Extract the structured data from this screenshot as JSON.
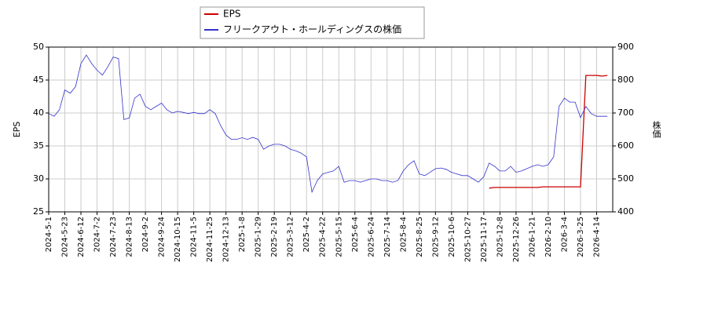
{
  "chart_data": {
    "type": "line",
    "y_label": "EPS",
    "y2_label": "株価",
    "categories": [
      "2024-5-1",
      null,
      null,
      "2024-5-23",
      null,
      null,
      "2024-6-12",
      null,
      null,
      "2024-7-2",
      null,
      null,
      "2024-7-23",
      null,
      null,
      "2024-8-13",
      null,
      null,
      "2024-9-2",
      null,
      null,
      "2024-9-24",
      null,
      null,
      "2024-10-15",
      null,
      null,
      "2024-11-5",
      null,
      null,
      "2024-11-25",
      null,
      null,
      "2024-12-13",
      null,
      null,
      "2025-1-8",
      null,
      null,
      "2025-1-29",
      null,
      null,
      "2025-2-19",
      null,
      null,
      "2025-3-12",
      null,
      null,
      "2025-4-2",
      null,
      null,
      "2025-4-22",
      null,
      null,
      "2025-5-15",
      null,
      null,
      "2025-6-4",
      null,
      null,
      "2025-6-24",
      null,
      null,
      "2025-7-14",
      null,
      null,
      "2025-8-4",
      null,
      null,
      "2025-8-25",
      null,
      null,
      "2025-9-12",
      null,
      null,
      "2025-10-6",
      null,
      null,
      "2025-10-27",
      null,
      null,
      "2025-11-17",
      null,
      null,
      "2025-12-8",
      null,
      null,
      "2025-12-26",
      null,
      null,
      "2026-1-21",
      null,
      null,
      "2026-2-10",
      null,
      null,
      "2026-3-4",
      null,
      null,
      "2026-3-25",
      null,
      null,
      "2026-4-14",
      null,
      null
    ],
    "series": [
      {
        "name": "EPS",
        "color": "#cc0000",
        "axis": "y",
        "values": [
          null,
          null,
          null,
          null,
          null,
          null,
          null,
          null,
          null,
          null,
          null,
          null,
          null,
          null,
          null,
          null,
          null,
          null,
          null,
          null,
          null,
          null,
          null,
          null,
          null,
          null,
          null,
          null,
          null,
          null,
          null,
          null,
          null,
          null,
          null,
          null,
          null,
          null,
          null,
          null,
          null,
          null,
          null,
          null,
          null,
          null,
          null,
          null,
          null,
          null,
          null,
          null,
          null,
          null,
          null,
          null,
          null,
          null,
          null,
          null,
          null,
          null,
          null,
          null,
          null,
          null,
          null,
          null,
          null,
          null,
          null,
          null,
          null,
          null,
          null,
          null,
          null,
          null,
          null,
          null,
          null,
          null,
          28.6,
          28.7,
          28.7,
          28.7,
          28.7,
          28.7,
          28.7,
          28.7,
          28.7,
          28.7,
          28.8,
          28.8,
          28.8,
          28.8,
          28.8,
          28.8,
          28.8,
          28.8,
          45.7,
          45.7,
          45.7,
          45.6,
          45.7
        ]
      },
      {
        "name": "フリークアウト・ホールディングスの株価",
        "color": "#3333cc",
        "axis": "y2",
        "values": [
          698,
          690,
          710,
          770,
          760,
          780,
          850,
          876,
          850,
          830,
          815,
          840,
          870,
          865,
          680,
          685,
          745,
          757,
          720,
          710,
          720,
          730,
          710,
          700,
          705,
          702,
          698,
          702,
          698,
          698,
          710,
          698,
          662,
          633,
          620,
          620,
          625,
          620,
          626,
          620,
          590,
          600,
          605,
          605,
          600,
          590,
          585,
          578,
          567,
          460,
          495,
          515,
          520,
          524,
          538,
          490,
          495,
          495,
          490,
          495,
          500,
          500,
          495,
          495,
          490,
          495,
          524,
          543,
          555,
          515,
          510,
          520,
          531,
          533,
          529,
          520,
          515,
          510,
          510,
          500,
          490,
          507,
          548,
          538,
          524,
          524,
          538,
          520,
          524,
          531,
          538,
          543,
          538,
          543,
          567,
          720,
          745,
          733,
          733,
          686,
          720,
          698,
          690,
          690,
          690
        ]
      }
    ],
    "ylim": [
      25,
      50
    ],
    "yticks": [
      25,
      30,
      35,
      40,
      45,
      50
    ],
    "y2lim": [
      400,
      900
    ],
    "y2ticks": [
      400,
      500,
      600,
      700,
      800,
      900
    ],
    "grid": true
  }
}
